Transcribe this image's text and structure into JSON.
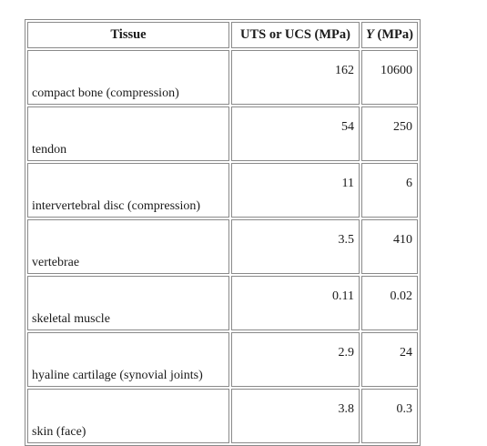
{
  "table": {
    "headers": {
      "tissue": "Tissue",
      "uts": "UTS or UCS (MPa)",
      "y_symbol": "Y",
      "y_unit": " (MPa)"
    },
    "rows": [
      {
        "tissue": "compact bone (compression)",
        "uts": "162",
        "y": "10600"
      },
      {
        "tissue": "tendon",
        "uts": "54",
        "y": "250"
      },
      {
        "tissue": "intervertebral disc (compression)",
        "uts": "11",
        "y": "6"
      },
      {
        "tissue": "vertebrae",
        "uts": "3.5",
        "y": "410"
      },
      {
        "tissue": "skeletal muscle",
        "uts": "0.11",
        "y": "0.02"
      },
      {
        "tissue": "hyaline cartilage (synovial joints)",
        "uts": "2.9",
        "y": "24"
      },
      {
        "tissue": "skin (face)",
        "uts": "3.8",
        "y": "0.3"
      }
    ]
  }
}
